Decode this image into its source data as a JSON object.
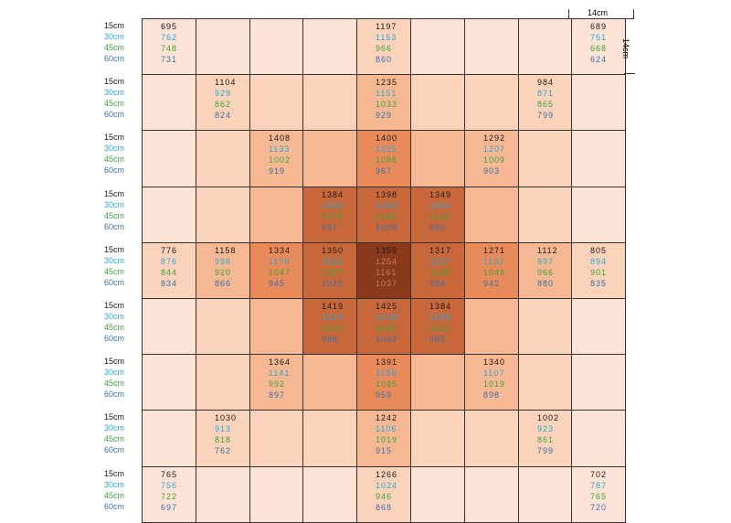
{
  "depth_labels": [
    "15cm",
    "30cm",
    "45cm",
    "60cm"
  ],
  "dimension_labels": {
    "horizontal": "14cm",
    "vertical": "14cm"
  },
  "colors": {
    "depth_15": "#1a1a1a",
    "depth_30": "#2aa7d8",
    "depth_45": "#3ea33a",
    "depth_60": "#3a6fa8",
    "grid_line": "#333333",
    "shade_levels": [
      "#fde3d5",
      "#fbd3ba",
      "#f5b892",
      "#e88a5a",
      "#c8683a",
      "#8a3a1a"
    ]
  },
  "grid": {
    "rows": 9,
    "cols": 9,
    "shade": [
      [
        0,
        0,
        0,
        0,
        1,
        0,
        0,
        0,
        0
      ],
      [
        0,
        1,
        1,
        1,
        2,
        1,
        1,
        1,
        0
      ],
      [
        0,
        1,
        2,
        2,
        3,
        2,
        2,
        1,
        0
      ],
      [
        0,
        1,
        2,
        4,
        4,
        4,
        2,
        1,
        0
      ],
      [
        1,
        2,
        3,
        4,
        5,
        4,
        3,
        2,
        1
      ],
      [
        0,
        1,
        2,
        4,
        4,
        4,
        2,
        1,
        0
      ],
      [
        0,
        1,
        2,
        2,
        3,
        2,
        2,
        1,
        0
      ],
      [
        0,
        1,
        1,
        1,
        2,
        1,
        1,
        1,
        0
      ],
      [
        0,
        0,
        0,
        0,
        1,
        0,
        0,
        0,
        0
      ]
    ],
    "cells": [
      {
        "r": 0,
        "c": 0,
        "v": [
          "695",
          "762",
          "748",
          "731"
        ]
      },
      {
        "r": 0,
        "c": 4,
        "v": [
          "1197",
          "1153",
          "966",
          "860"
        ]
      },
      {
        "r": 0,
        "c": 8,
        "v": [
          "689",
          "751",
          "668",
          "624"
        ]
      },
      {
        "r": 1,
        "c": 1,
        "v": [
          "1104",
          "929",
          "862",
          "824"
        ]
      },
      {
        "r": 1,
        "c": 4,
        "v": [
          "1235",
          "1151",
          "1033",
          "929"
        ]
      },
      {
        "r": 1,
        "c": 7,
        "v": [
          "984",
          "871",
          "865",
          "799"
        ]
      },
      {
        "r": 2,
        "c": 2,
        "v": [
          "1408",
          "1133",
          "1002",
          "919"
        ]
      },
      {
        "r": 2,
        "c": 4,
        "v": [
          "1400",
          "1225",
          "1088",
          "967"
        ]
      },
      {
        "r": 2,
        "c": 6,
        "v": [
          "1292",
          "1207",
          "1009",
          "903"
        ]
      },
      {
        "r": 3,
        "c": 3,
        "v": [
          "1384",
          "1235",
          "1178",
          "997"
        ]
      },
      {
        "r": 3,
        "c": 4,
        "v": [
          "1398",
          "1252",
          "1164",
          "1008"
        ]
      },
      {
        "r": 3,
        "c": 5,
        "v": [
          "1349",
          "1201",
          "1155",
          "990"
        ]
      },
      {
        "r": 4,
        "c": 0,
        "v": [
          "776",
          "876",
          "844",
          "834"
        ]
      },
      {
        "r": 4,
        "c": 1,
        "v": [
          "1158",
          "996",
          "920",
          "866"
        ]
      },
      {
        "r": 4,
        "c": 2,
        "v": [
          "1334",
          "1170",
          "1047",
          "945"
        ]
      },
      {
        "r": 4,
        "c": 3,
        "v": [
          "1350",
          "1231",
          "1157",
          "1026"
        ]
      },
      {
        "r": 4,
        "c": 4,
        "v": [
          "1359",
          "1254",
          "1161",
          "1037"
        ]
      },
      {
        "r": 4,
        "c": 5,
        "v": [
          "1317",
          "1217",
          "1139",
          "994"
        ]
      },
      {
        "r": 4,
        "c": 6,
        "v": [
          "1271",
          "1132",
          "1049",
          "942"
        ]
      },
      {
        "r": 4,
        "c": 7,
        "v": [
          "1112",
          "997",
          "966",
          "880"
        ]
      },
      {
        "r": 4,
        "c": 8,
        "v": [
          "805",
          "894",
          "901",
          "835"
        ]
      },
      {
        "r": 5,
        "c": 3,
        "v": [
          "1419",
          "1223",
          "1146",
          "988"
        ]
      },
      {
        "r": 5,
        "c": 4,
        "v": [
          "1425",
          "1218",
          "1155",
          "1002"
        ]
      },
      {
        "r": 5,
        "c": 5,
        "v": [
          "1384",
          "1198",
          "1141",
          "985"
        ]
      },
      {
        "r": 6,
        "c": 2,
        "v": [
          "1364",
          "1141",
          "992",
          "897"
        ]
      },
      {
        "r": 6,
        "c": 4,
        "v": [
          "1391",
          "1188",
          "1095",
          "959"
        ]
      },
      {
        "r": 6,
        "c": 6,
        "v": [
          "1340",
          "1107",
          "1019",
          "898"
        ]
      },
      {
        "r": 7,
        "c": 1,
        "v": [
          "1030",
          "913",
          "818",
          "762"
        ]
      },
      {
        "r": 7,
        "c": 4,
        "v": [
          "1242",
          "1106",
          "1019",
          "915"
        ]
      },
      {
        "r": 7,
        "c": 7,
        "v": [
          "1002",
          "923",
          "861",
          "799"
        ]
      },
      {
        "r": 8,
        "c": 0,
        "v": [
          "765",
          "756",
          "722",
          "697"
        ]
      },
      {
        "r": 8,
        "c": 4,
        "v": [
          "1266",
          "1024",
          "946",
          "868"
        ]
      },
      {
        "r": 8,
        "c": 8,
        "v": [
          "702",
          "787",
          "765",
          "720"
        ]
      }
    ]
  }
}
